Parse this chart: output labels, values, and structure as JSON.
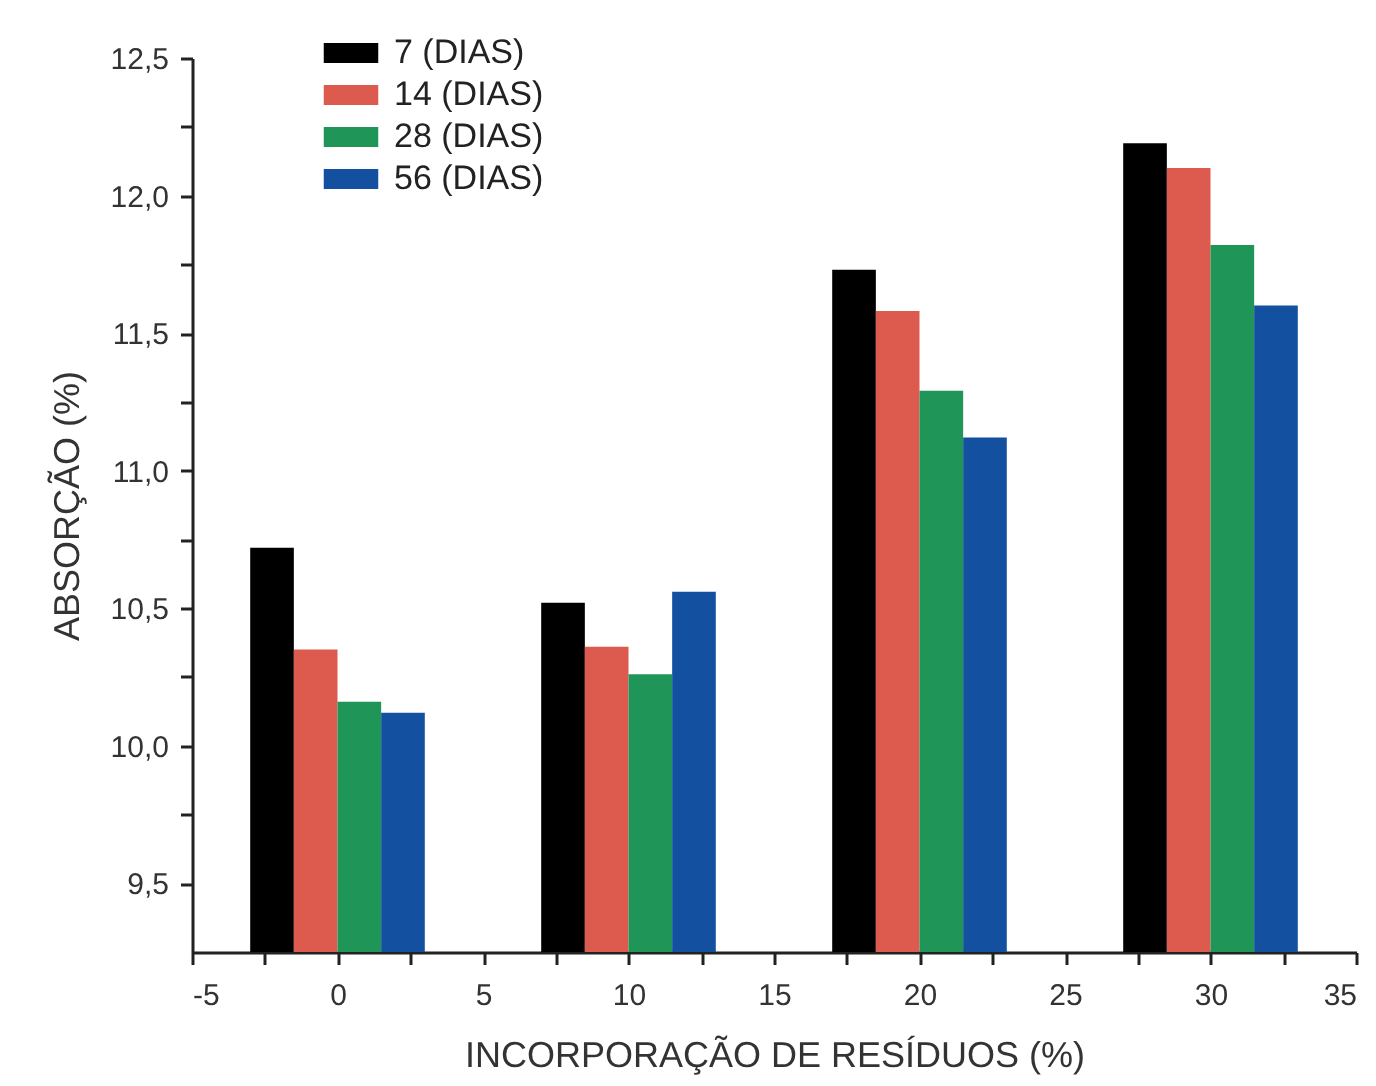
{
  "chart_data": {
    "type": "bar",
    "xlabel": "INCORPORAÇÃO DE RESÍDUOS (%)",
    "ylabel": "ABSORÇÃO (%)",
    "x": [
      0,
      10,
      20,
      30
    ],
    "series": [
      {
        "name": "7   (DIAS)",
        "color": "#000000",
        "values": [
          10.72,
          10.52,
          11.73,
          12.19
        ]
      },
      {
        "name": "14 (DIAS)",
        "color": "#dd5a4e",
        "values": [
          10.35,
          10.36,
          11.58,
          12.1
        ]
      },
      {
        "name": "28 (DIAS)",
        "color": "#1f9558",
        "values": [
          10.16,
          10.26,
          11.29,
          11.82
        ]
      },
      {
        "name": "56 (DIAS)",
        "color": "#1450a0",
        "values": [
          10.12,
          10.56,
          11.12,
          11.6
        ]
      }
    ],
    "xlim": [
      -5,
      35
    ],
    "xticks": [
      -5,
      {
        "value": -2.5,
        "label": null
      },
      0,
      {
        "value": 2.5,
        "label": null
      },
      5,
      {
        "value": 7.5,
        "label": null
      },
      10,
      {
        "value": 12.5,
        "label": null
      },
      15,
      {
        "value": 17.5,
        "label": null
      },
      20,
      {
        "value": 22.5,
        "label": null
      },
      25,
      {
        "value": 27.5,
        "label": null
      },
      30,
      {
        "value": 32.5,
        "label": null
      },
      35
    ],
    "ylim": [
      9.25,
      12.5
    ],
    "yticks": [
      {
        "value": 9.5,
        "label": "9,5"
      },
      {
        "value": 9.75,
        "label": null
      },
      {
        "value": 10,
        "label": "10,0"
      },
      {
        "value": 10.25,
        "label": null
      },
      {
        "value": 10.5,
        "label": "10,5"
      },
      {
        "value": 10.75,
        "label": null
      },
      {
        "value": 11,
        "label": "11,0"
      },
      {
        "value": 11.25,
        "label": null
      },
      {
        "value": 11.5,
        "label": "11,5"
      },
      {
        "value": 11.75,
        "label": null
      },
      {
        "value": 12,
        "label": "12,0"
      },
      {
        "value": 12.25,
        "label": null
      },
      {
        "value": 12.5,
        "label": "12,5"
      }
    ],
    "legend": "top left"
  }
}
